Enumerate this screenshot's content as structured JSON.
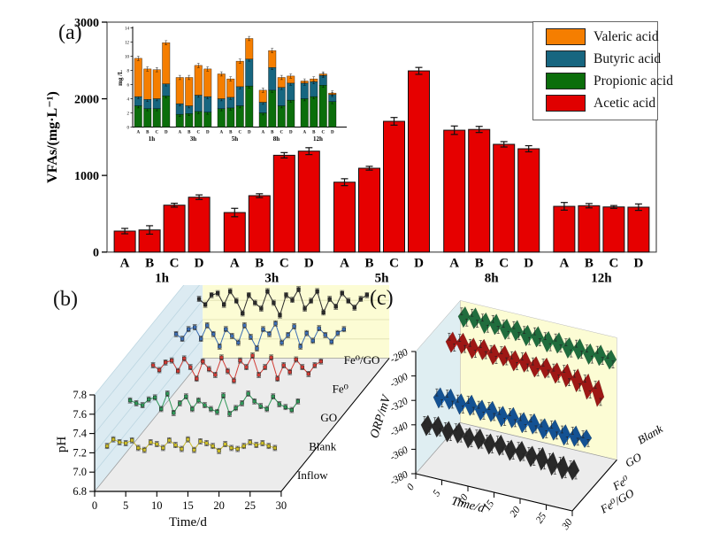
{
  "figure": {
    "background": "#ffffff",
    "panel_a_label": "(a)",
    "panel_b_label": "(b)",
    "panel_c_label": "(c)"
  },
  "panel_a": {
    "ylabel": "VFAs/(mg·L⁻¹)",
    "yticks": [
      "0",
      "1000",
      "2000",
      "3000"
    ],
    "ylim": [
      0,
      3000
    ],
    "legend": {
      "items": [
        {
          "label": "Valeric acid",
          "color": "#F57E00"
        },
        {
          "label": "Butyric acid",
          "color": "#176680"
        },
        {
          "label": "Propionic acid",
          "color": "#0B6E0B"
        },
        {
          "label": "Acetic acid",
          "color": "#E00000"
        }
      ]
    },
    "chart_data": {
      "type": "bar",
      "bar_color": "#E60000",
      "categories": [
        "1h",
        "3h",
        "5h",
        "8h",
        "12h"
      ],
      "bar_labels": [
        "A",
        "B",
        "C",
        "D"
      ],
      "values": [
        [
          274,
          289,
          612,
          716
        ],
        [
          516,
          736,
          1263,
          1317
        ],
        [
          912,
          1094,
          1706,
          2364
        ],
        [
          1590,
          1600,
          1406,
          1348
        ],
        [
          597,
          605,
          589,
          586
        ]
      ],
      "errors": [
        [
          35,
          55,
          25,
          30
        ],
        [
          55,
          25,
          35,
          45
        ],
        [
          45,
          25,
          50,
          45
        ],
        [
          55,
          40,
          35,
          40
        ],
        [
          50,
          28,
          18,
          42
        ]
      ]
    },
    "inset": {
      "ylabel": "mg /L",
      "ylim": [
        0,
        14
      ],
      "yticks": [
        0,
        2,
        4,
        6,
        8,
        10,
        12,
        14
      ],
      "chart_data": {
        "type": "stacked-bar",
        "categories": [
          "1h",
          "3h",
          "5h",
          "8h",
          "12h"
        ],
        "bar_labels": [
          "A",
          "B",
          "C",
          "D"
        ],
        "segment_error": 0.3,
        "series": [
          {
            "name": "Propionic acid",
            "color": "#0B6E0B",
            "values": [
              [
                3.0,
                2.6,
                2.6,
                4.4
              ],
              [
                1.8,
                1.9,
                2.2,
                2.1
              ],
              [
                2.6,
                2.7,
                3.0,
                5.8
              ],
              [
                2.0,
                5.2,
                3.0,
                3.8
              ],
              [
                4.0,
                4.3,
                5.9,
                3.6
              ]
            ]
          },
          {
            "name": "Butyric acid",
            "color": "#176680",
            "values": [
              [
                1.3,
                1.3,
                1.4,
                1.7
              ],
              [
                1.5,
                1.1,
                2.3,
                2.2
              ],
              [
                1.4,
                1.5,
                2.7,
                3.8
              ],
              [
                1.5,
                3.2,
                2.6,
                2.4
              ],
              [
                2.2,
                2.1,
                1.4,
                1.0
              ]
            ]
          },
          {
            "name": "Valeric acid",
            "color": "#F57E00",
            "values": [
              [
                5.4,
                4.3,
                4.1,
                5.8
              ],
              [
                3.7,
                4.0,
                4.2,
                3.9
              ],
              [
                3.5,
                2.6,
                3.6,
                2.9
              ],
              [
                1.7,
                2.4,
                1.4,
                1.0
              ],
              [
                0.3,
                0.4,
                0.2,
                0.2
              ]
            ]
          }
        ]
      }
    }
  },
  "panel_b": {
    "ylabel": "pH",
    "xlabel": "Time/d",
    "yticks": [
      6.8,
      7.0,
      7.2,
      7.4,
      7.6,
      7.8
    ],
    "xticks": [
      0,
      5,
      10,
      15,
      20,
      25,
      30
    ],
    "ylim": [
      6.8,
      7.8
    ],
    "xlim": [
      0,
      30
    ],
    "chart_data": {
      "type": "line",
      "projection": "3d-waterfall",
      "error": 0.02,
      "days": [
        2,
        3,
        4,
        5,
        6,
        7,
        8,
        9,
        10,
        11,
        12,
        13,
        14,
        15,
        16,
        17,
        18,
        19,
        20,
        21,
        22,
        23,
        24,
        25,
        26,
        27,
        28,
        29
      ],
      "series": [
        {
          "name": "Inflow",
          "color": "#CDBE2A",
          "values": [
            7.27,
            7.34,
            7.31,
            7.3,
            7.33,
            7.25,
            7.23,
            7.31,
            7.29,
            7.25,
            7.33,
            7.28,
            7.24,
            7.34,
            7.23,
            7.32,
            7.3,
            7.27,
            7.22,
            7.29,
            7.25,
            7.24,
            7.27,
            7.31,
            7.28,
            7.3,
            7.27,
            7.25
          ]
        },
        {
          "name": "Blank",
          "color": "#2F9858",
          "values": [
            7.45,
            7.42,
            7.4,
            7.46,
            7.48,
            7.36,
            7.52,
            7.32,
            7.42,
            7.49,
            7.36,
            7.45,
            7.4,
            7.36,
            7.33,
            7.5,
            7.31,
            7.37,
            7.42,
            7.52,
            7.44,
            7.39,
            7.36,
            7.49,
            7.41,
            7.38,
            7.35,
            7.44
          ]
        },
        {
          "name": "GO",
          "color": "#D23B34",
          "values": [
            7.52,
            7.47,
            7.55,
            7.57,
            7.46,
            7.59,
            7.5,
            7.38,
            7.56,
            7.48,
            7.42,
            7.6,
            7.46,
            7.36,
            7.57,
            7.5,
            7.62,
            7.42,
            7.5,
            7.6,
            7.38,
            7.52,
            7.45,
            7.58,
            7.5,
            7.43,
            7.52,
            7.56
          ]
        },
        {
          "name": "Fe⁰",
          "color": "#3D6FB6",
          "values": [
            7.55,
            7.5,
            7.6,
            7.62,
            7.5,
            7.64,
            7.55,
            7.42,
            7.6,
            7.53,
            7.46,
            7.64,
            7.52,
            7.4,
            7.6,
            7.55,
            7.66,
            7.46,
            7.54,
            7.63,
            7.42,
            7.56,
            7.48,
            7.61,
            7.54,
            7.47,
            7.56,
            7.6
          ]
        },
        {
          "name": "Fe⁰/GO",
          "color": "#2B2B2B",
          "values": [
            7.62,
            7.56,
            7.66,
            7.68,
            7.56,
            7.7,
            7.6,
            7.47,
            7.66,
            7.58,
            7.52,
            7.7,
            7.58,
            7.45,
            7.66,
            7.61,
            7.72,
            7.52,
            7.6,
            7.7,
            7.48,
            7.62,
            7.54,
            7.68,
            7.6,
            7.53,
            7.62,
            7.66
          ]
        }
      ]
    }
  },
  "panel_c": {
    "zlabel": "ORP/mV",
    "xlabel": "Time/d",
    "zticks": [
      -280,
      -300,
      -320,
      -340,
      -360,
      -380
    ],
    "xticks": [
      0,
      5,
      10,
      15,
      20,
      25,
      30
    ],
    "zlim": [
      -380,
      -280
    ],
    "xlim": [
      0,
      30
    ],
    "chart_data": {
      "type": "area",
      "projection": "3d-ribbon",
      "error": 2,
      "days": [
        1,
        2,
        3,
        4,
        5,
        6,
        7,
        8,
        9,
        10,
        11,
        12,
        13,
        14,
        15,
        16,
        17,
        18,
        19,
        20,
        21,
        22,
        23,
        24,
        25,
        26,
        27,
        28,
        29,
        30
      ],
      "series": [
        {
          "name": "Fe⁰/GO",
          "color": "#3C3C3C",
          "values": [
            -339,
            -347,
            -338,
            -346,
            -340,
            -348,
            -339,
            -347,
            -341,
            -349,
            -340,
            -348,
            -342,
            -350,
            -341,
            -349,
            -343,
            -351,
            -342,
            -350,
            -344,
            -352,
            -343,
            -353,
            -345,
            -355,
            -346,
            -356,
            -347,
            -355
          ]
        },
        {
          "name": "Fe⁰",
          "color": "#1D78D8",
          "values": [
            -328,
            -336,
            -327,
            -335,
            -329,
            -337,
            -328,
            -336,
            -330,
            -338,
            -329,
            -337,
            -331,
            -339,
            -330,
            -338,
            -332,
            -340,
            -331,
            -339,
            -333,
            -341,
            -332,
            -340,
            -334,
            -342,
            -333,
            -341,
            -334,
            -340
          ]
        },
        {
          "name": "GO",
          "color": "#E8241F",
          "values": [
            -294,
            -302,
            -293,
            -301,
            -295,
            -303,
            -294,
            -302,
            -296,
            -304,
            -295,
            -303,
            -297,
            -305,
            -296,
            -304,
            -298,
            -306,
            -297,
            -305,
            -299,
            -307,
            -298,
            -308,
            -300,
            -310,
            -302,
            -314,
            -305,
            -318
          ]
        },
        {
          "name": "Blank",
          "color": "#2FA05A",
          "values": [
            -285,
            -293,
            -284,
            -292,
            -286,
            -294,
            -285,
            -293,
            -287,
            -295,
            -286,
            -294,
            -288,
            -296,
            -287,
            -295,
            -289,
            -297,
            -288,
            -296,
            -290,
            -298,
            -289,
            -297,
            -291,
            -299,
            -290,
            -298,
            -292,
            -299
          ]
        }
      ]
    }
  }
}
